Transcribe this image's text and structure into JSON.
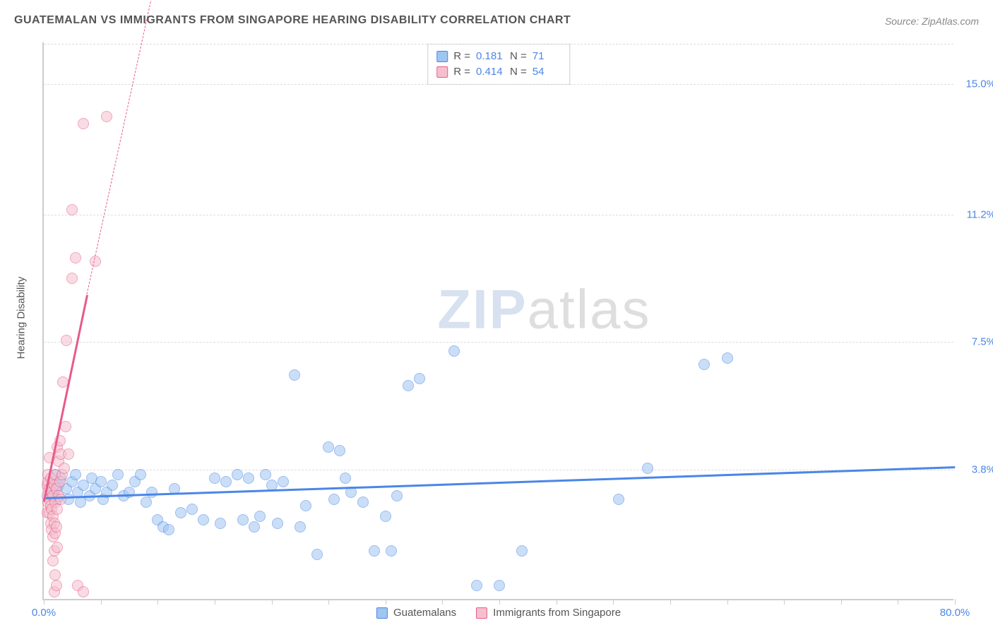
{
  "title": "GUATEMALAN VS IMMIGRANTS FROM SINGAPORE HEARING DISABILITY CORRELATION CHART",
  "source": "Source: ZipAtlas.com",
  "watermark": {
    "part1": "ZIP",
    "part2": "atlas"
  },
  "chart": {
    "type": "scatter",
    "y_axis_title": "Hearing Disability",
    "background_color": "#ffffff",
    "grid_color": "#dddddd",
    "axis_color": "#cccccc",
    "x_range": [
      0,
      80
    ],
    "y_range": [
      0,
      16.2
    ],
    "x_min_label": "0.0%",
    "x_max_label": "80.0%",
    "x_label_color": "#4a86e8",
    "x_ticks": [
      0,
      5,
      10,
      15,
      20,
      25,
      30,
      35,
      40,
      45,
      50,
      55,
      60,
      65,
      70,
      75,
      80
    ],
    "y_ticks": [
      {
        "v": 3.8,
        "label": "3.8%",
        "color": "#4a86e8"
      },
      {
        "v": 7.5,
        "label": "7.5%",
        "color": "#4a86e8"
      },
      {
        "v": 11.2,
        "label": "11.2%",
        "color": "#4a86e8"
      },
      {
        "v": 15.0,
        "label": "15.0%",
        "color": "#4a86e8"
      }
    ],
    "marker_radius": 8,
    "marker_opacity": 0.55,
    "series": [
      {
        "name": "Guatemalans",
        "fill_color": "#9fc5f1",
        "stroke_color": "#4a86e8",
        "R": "0.181",
        "N": "71",
        "trend": {
          "x1": 0,
          "y1": 3.0,
          "x2": 80,
          "y2": 3.9,
          "dash_extend": false
        },
        "points": [
          [
            0.5,
            3.0
          ],
          [
            0.8,
            3.1
          ],
          [
            1.0,
            3.2
          ],
          [
            1.0,
            3.6
          ],
          [
            1.2,
            2.9
          ],
          [
            1.3,
            3.3
          ],
          [
            1.5,
            3.5
          ],
          [
            2.0,
            3.2
          ],
          [
            2.2,
            2.9
          ],
          [
            2.5,
            3.4
          ],
          [
            2.8,
            3.6
          ],
          [
            3.0,
            3.1
          ],
          [
            3.2,
            2.8
          ],
          [
            3.5,
            3.3
          ],
          [
            4.0,
            3.0
          ],
          [
            4.2,
            3.5
          ],
          [
            4.5,
            3.2
          ],
          [
            5.0,
            3.4
          ],
          [
            5.2,
            2.9
          ],
          [
            5.5,
            3.1
          ],
          [
            6.0,
            3.3
          ],
          [
            6.5,
            3.6
          ],
          [
            7.0,
            3.0
          ],
          [
            7.5,
            3.1
          ],
          [
            8.0,
            3.4
          ],
          [
            8.5,
            3.6
          ],
          [
            9.0,
            2.8
          ],
          [
            9.5,
            3.1
          ],
          [
            10.0,
            2.3
          ],
          [
            10.5,
            2.1
          ],
          [
            11.0,
            2.0
          ],
          [
            11.5,
            3.2
          ],
          [
            12.0,
            2.5
          ],
          [
            13.0,
            2.6
          ],
          [
            14.0,
            2.3
          ],
          [
            15.0,
            3.5
          ],
          [
            15.5,
            2.2
          ],
          [
            16.0,
            3.4
          ],
          [
            17.0,
            3.6
          ],
          [
            17.5,
            2.3
          ],
          [
            18.0,
            3.5
          ],
          [
            18.5,
            2.1
          ],
          [
            19.0,
            2.4
          ],
          [
            19.5,
            3.6
          ],
          [
            20.0,
            3.3
          ],
          [
            20.5,
            2.2
          ],
          [
            21.0,
            3.4
          ],
          [
            22.0,
            6.5
          ],
          [
            22.5,
            2.1
          ],
          [
            23.0,
            2.7
          ],
          [
            24.0,
            1.3
          ],
          [
            25.0,
            4.4
          ],
          [
            25.5,
            2.9
          ],
          [
            26.0,
            4.3
          ],
          [
            26.5,
            3.5
          ],
          [
            27.0,
            3.1
          ],
          [
            28.0,
            2.8
          ],
          [
            29.0,
            1.4
          ],
          [
            30.0,
            2.4
          ],
          [
            30.5,
            1.4
          ],
          [
            31.0,
            3.0
          ],
          [
            32.0,
            6.2
          ],
          [
            33.0,
            6.4
          ],
          [
            36.0,
            7.2
          ],
          [
            38.0,
            0.4
          ],
          [
            40.0,
            0.4
          ],
          [
            42.0,
            1.4
          ],
          [
            50.5,
            2.9
          ],
          [
            53.0,
            3.8
          ],
          [
            58.0,
            6.8
          ],
          [
            60.0,
            7.0
          ]
        ]
      },
      {
        "name": "Immigrants from Singapore",
        "fill_color": "#f5c0cd",
        "stroke_color": "#e85a8a",
        "R": "0.414",
        "N": "54",
        "trend": {
          "x1": 0,
          "y1": 2.9,
          "x2": 3.8,
          "y2": 8.9,
          "dash_extend": true,
          "dash_x2": 9.8,
          "dash_y2": 18.0
        },
        "points": [
          [
            0.3,
            2.5
          ],
          [
            0.3,
            3.0
          ],
          [
            0.3,
            3.3
          ],
          [
            0.4,
            2.8
          ],
          [
            0.4,
            3.4
          ],
          [
            0.4,
            3.6
          ],
          [
            0.5,
            2.5
          ],
          [
            0.5,
            2.9
          ],
          [
            0.5,
            3.2
          ],
          [
            0.5,
            4.1
          ],
          [
            0.6,
            2.2
          ],
          [
            0.6,
            2.7
          ],
          [
            0.6,
            3.5
          ],
          [
            0.7,
            2.0
          ],
          [
            0.7,
            2.6
          ],
          [
            0.7,
            3.1
          ],
          [
            0.8,
            1.1
          ],
          [
            0.8,
            1.8
          ],
          [
            0.8,
            2.4
          ],
          [
            0.8,
            3.0
          ],
          [
            0.9,
            0.2
          ],
          [
            0.9,
            1.4
          ],
          [
            0.9,
            2.2
          ],
          [
            0.9,
            3.3
          ],
          [
            1.0,
            0.7
          ],
          [
            1.0,
            1.9
          ],
          [
            1.0,
            2.8
          ],
          [
            1.0,
            3.6
          ],
          [
            1.1,
            0.4
          ],
          [
            1.1,
            2.1
          ],
          [
            1.1,
            3.2
          ],
          [
            1.2,
            1.5
          ],
          [
            1.2,
            2.6
          ],
          [
            1.2,
            4.4
          ],
          [
            1.3,
            3.0
          ],
          [
            1.3,
            4.0
          ],
          [
            1.4,
            3.4
          ],
          [
            1.4,
            4.6
          ],
          [
            1.5,
            2.9
          ],
          [
            1.5,
            4.2
          ],
          [
            1.6,
            3.6
          ],
          [
            1.7,
            6.3
          ],
          [
            1.8,
            3.8
          ],
          [
            1.9,
            5.0
          ],
          [
            2.0,
            7.5
          ],
          [
            2.2,
            4.2
          ],
          [
            2.5,
            9.3
          ],
          [
            2.5,
            11.3
          ],
          [
            2.8,
            9.9
          ],
          [
            3.0,
            0.4
          ],
          [
            3.5,
            0.2
          ],
          [
            3.5,
            13.8
          ],
          [
            4.5,
            9.8
          ],
          [
            5.5,
            14.0
          ]
        ]
      }
    ],
    "legend_top": {
      "R_label": "R =",
      "N_label": "N ="
    },
    "legend_bottom": true
  }
}
